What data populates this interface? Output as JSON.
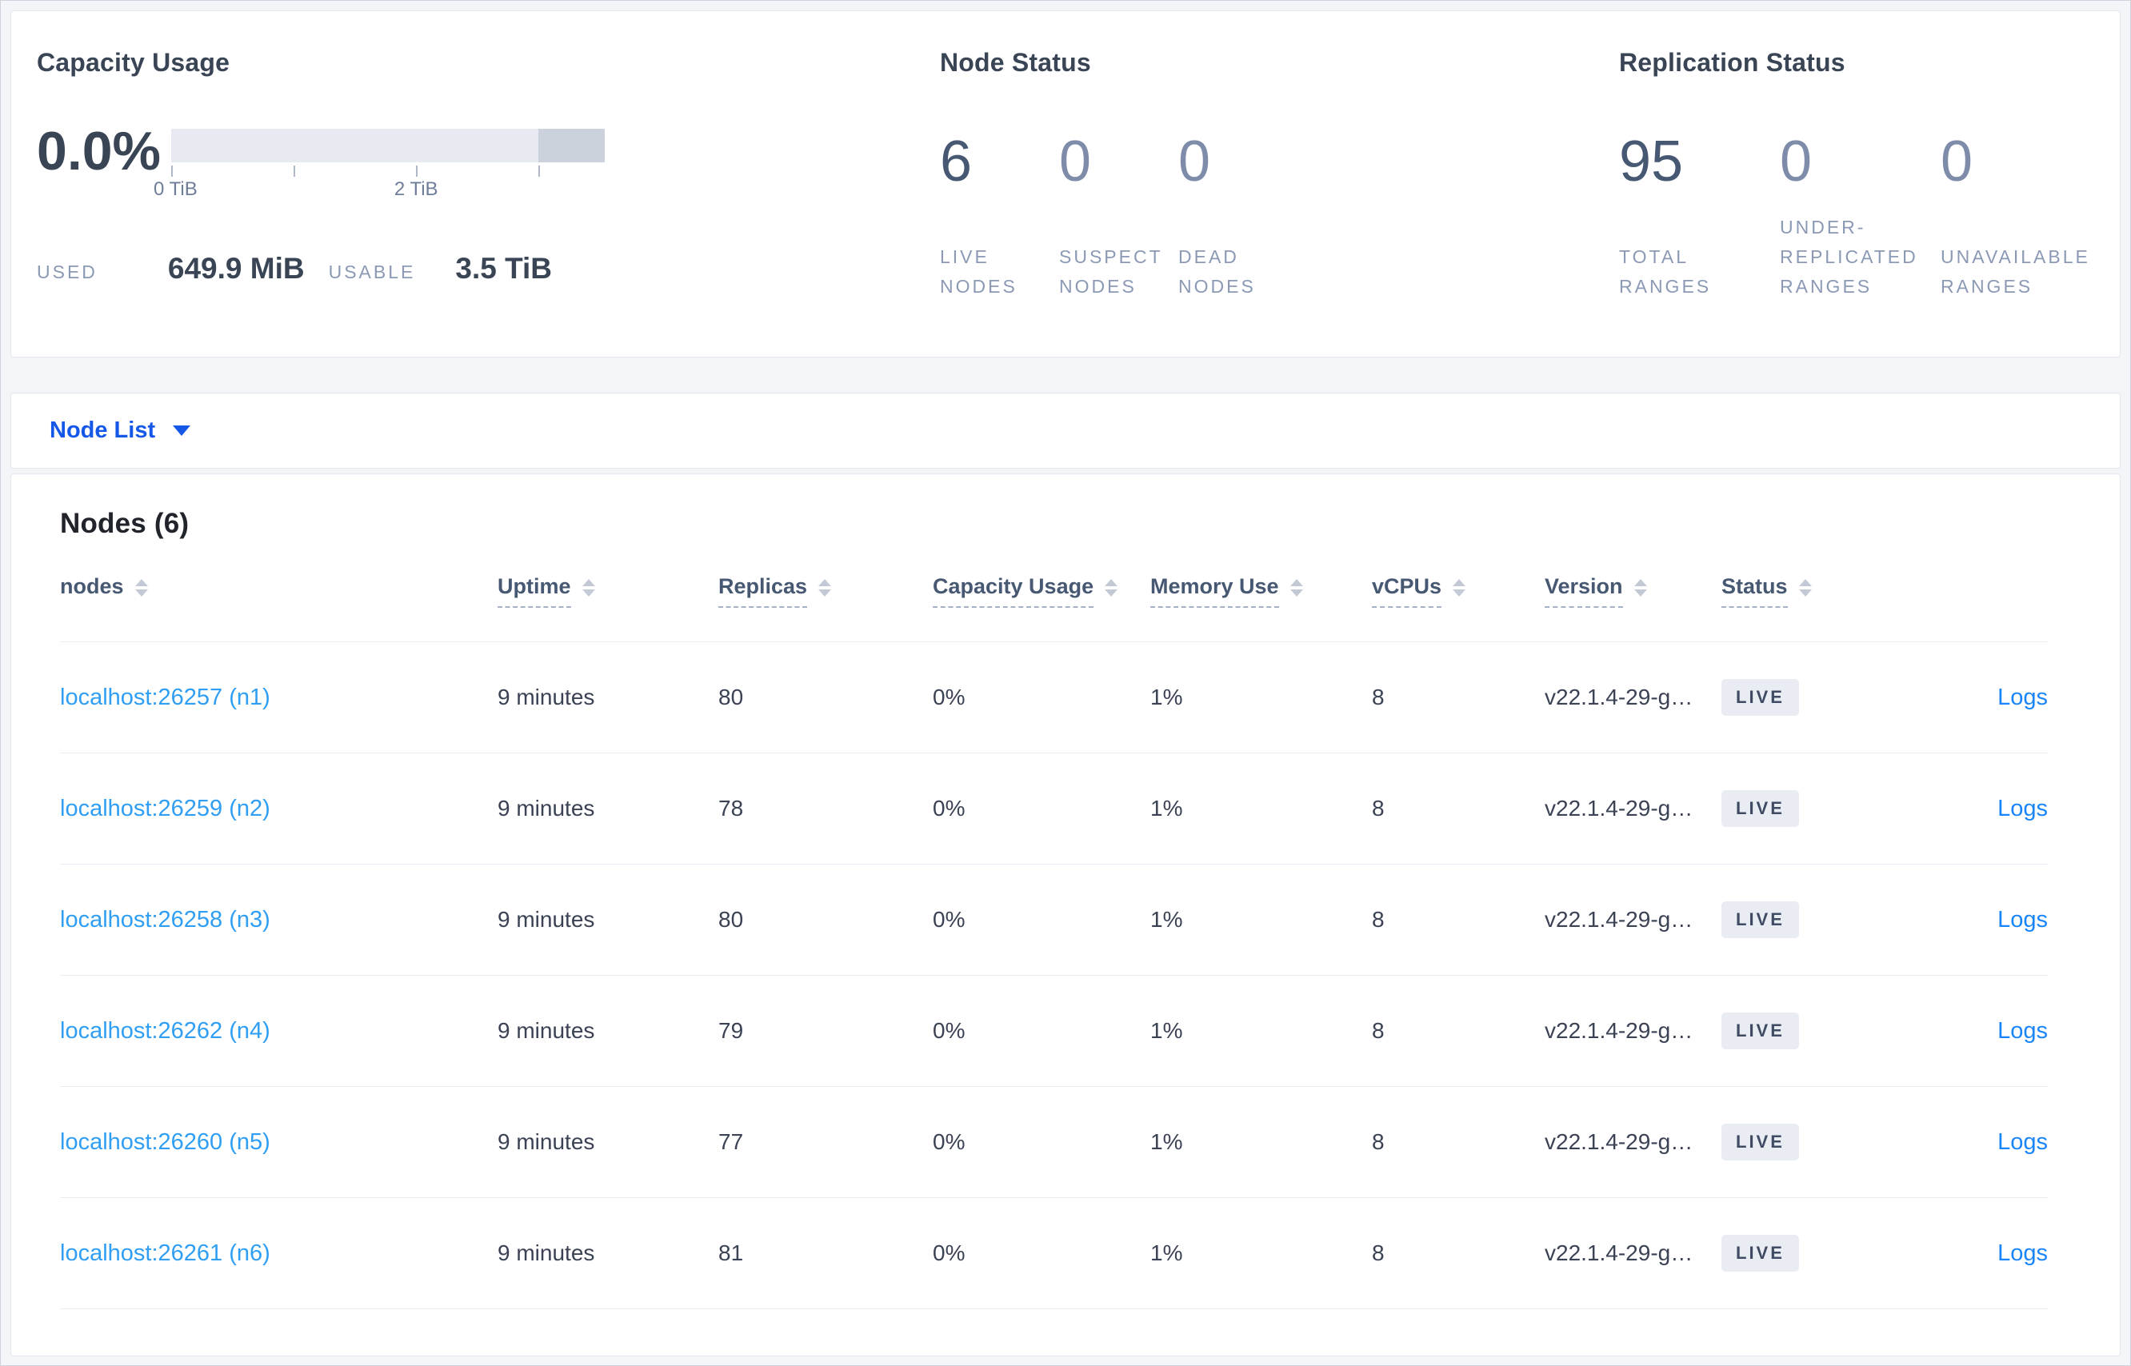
{
  "colors": {
    "link_blue": "#2f9ef3",
    "logs_blue": "#1a85f8",
    "selector_blue": "#1558e8",
    "heading_navy": "#394455",
    "stat_muted": "#7e8caa",
    "label_muted": "#8b99b5",
    "badge_bg": "#e9edf3",
    "badge_text": "#3f4a63"
  },
  "summary": {
    "capacity": {
      "title": "Capacity Usage",
      "percent": "0.0%",
      "tick_labels": [
        "0 TiB",
        "2 TiB"
      ],
      "used_label": "USED",
      "used_value": "649.9 MiB",
      "usable_label": "USABLE",
      "usable_value": "3.5 TiB"
    },
    "node_status": {
      "title": "Node Status",
      "stats": [
        {
          "value": "6",
          "label": "LIVE\nNODES"
        },
        {
          "value": "0",
          "label": "SUSPECT\nNODES"
        },
        {
          "value": "0",
          "label": "DEAD\nNODES"
        }
      ]
    },
    "replication": {
      "title": "Replication Status",
      "stats": [
        {
          "value": "95",
          "label": "TOTAL\nRANGES"
        },
        {
          "value": "0",
          "label": "UNDER-\nREPLICATED\nRANGES"
        },
        {
          "value": "0",
          "label": "UNAVAILABLE\nRANGES"
        }
      ]
    }
  },
  "view_selector": {
    "label": "Node List"
  },
  "table": {
    "title": "Nodes (6)",
    "columns": [
      "nodes",
      "Uptime",
      "Replicas",
      "Capacity Usage",
      "Memory Use",
      "vCPUs",
      "Version",
      "Status"
    ],
    "rows": [
      {
        "node": "localhost:26257 (n1)",
        "uptime": "9 minutes",
        "replicas": "80",
        "capacity": "0%",
        "memory": "1%",
        "vcpus": "8",
        "version": "v22.1.4-29-g…",
        "status": "LIVE",
        "logs": "Logs"
      },
      {
        "node": "localhost:26259 (n2)",
        "uptime": "9 minutes",
        "replicas": "78",
        "capacity": "0%",
        "memory": "1%",
        "vcpus": "8",
        "version": "v22.1.4-29-g…",
        "status": "LIVE",
        "logs": "Logs"
      },
      {
        "node": "localhost:26258 (n3)",
        "uptime": "9 minutes",
        "replicas": "80",
        "capacity": "0%",
        "memory": "1%",
        "vcpus": "8",
        "version": "v22.1.4-29-g…",
        "status": "LIVE",
        "logs": "Logs"
      },
      {
        "node": "localhost:26262 (n4)",
        "uptime": "9 minutes",
        "replicas": "79",
        "capacity": "0%",
        "memory": "1%",
        "vcpus": "8",
        "version": "v22.1.4-29-g…",
        "status": "LIVE",
        "logs": "Logs"
      },
      {
        "node": "localhost:26260 (n5)",
        "uptime": "9 minutes",
        "replicas": "77",
        "capacity": "0%",
        "memory": "1%",
        "vcpus": "8",
        "version": "v22.1.4-29-g…",
        "status": "LIVE",
        "logs": "Logs"
      },
      {
        "node": "localhost:26261 (n6)",
        "uptime": "9 minutes",
        "replicas": "81",
        "capacity": "0%",
        "memory": "1%",
        "vcpus": "8",
        "version": "v22.1.4-29-g…",
        "status": "LIVE",
        "logs": "Logs"
      }
    ]
  }
}
